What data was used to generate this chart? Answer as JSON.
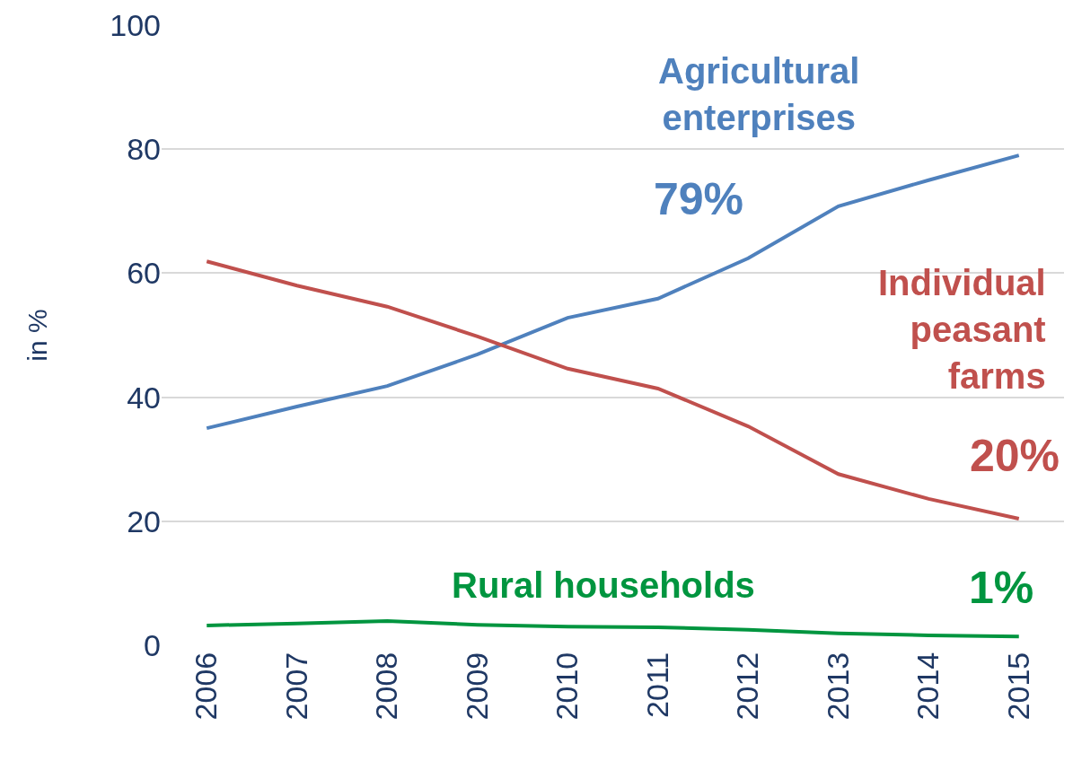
{
  "chart_data": {
    "type": "line",
    "ylabel": "in %",
    "categories": [
      "2006",
      "2007",
      "2008",
      "2009",
      "2010",
      "2011",
      "2012",
      "2013",
      "2014",
      "2015"
    ],
    "series": [
      {
        "name": "Agricultural\nenterprises",
        "color": "#4f81bd",
        "values": [
          35.0,
          38.5,
          41.8,
          46.9,
          52.8,
          55.9,
          62.4,
          70.8,
          75.0,
          79.0
        ]
      },
      {
        "name": "Individual\npeasant\nfarms",
        "color": "#c0504d",
        "values": [
          61.9,
          58.0,
          54.6,
          49.8,
          44.6,
          41.4,
          35.3,
          27.6,
          23.6,
          20.4
        ]
      },
      {
        "name": "Rural households",
        "color": "#00953f",
        "values": [
          3.2,
          3.5,
          3.9,
          3.3,
          3.0,
          2.9,
          2.5,
          1.9,
          1.6,
          1.4
        ]
      }
    ],
    "annotations": [
      "79%",
      "20%",
      "1%"
    ],
    "ylim": [
      0,
      100
    ],
    "yticks": [
      0,
      20,
      40,
      60,
      80,
      100
    ],
    "grid": "y",
    "legend": false,
    "marker": "none",
    "line_style": "solid"
  }
}
